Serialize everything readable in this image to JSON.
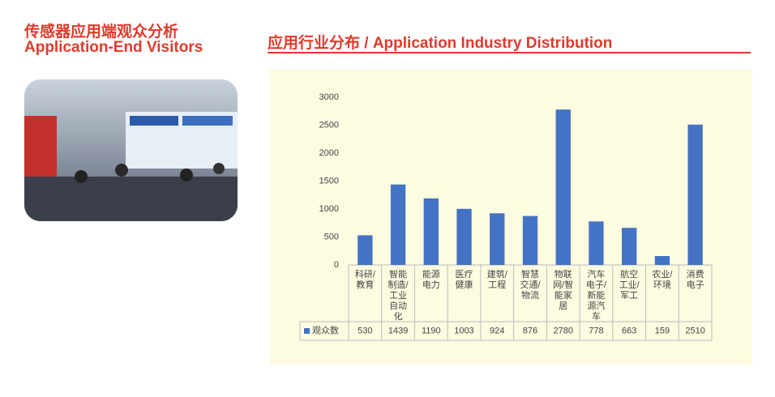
{
  "header": {
    "title_cn": "传感器应用端观众分析",
    "title_en": "Application-End Visitors"
  },
  "chart_data": {
    "type": "bar",
    "title": "应用行业分布 / Application Industry Distribution",
    "categories": [
      "科研/教育",
      "智能制造/工业自动化",
      "能源电力",
      "医疗健康",
      "建筑/工程",
      "智慧交通/物流",
      "物联网/智能家居",
      "汽车电子/新能源汽车",
      "航空工业/军工",
      "农业/环境",
      "消费电子"
    ],
    "series": [
      {
        "name": "观众数",
        "color": "#4472c4",
        "values": [
          530,
          1439,
          1190,
          1003,
          924,
          876,
          2780,
          778,
          663,
          159,
          2510
        ]
      }
    ],
    "ylim": [
      0,
      3000
    ],
    "yticks": [
      0,
      500,
      1000,
      1500,
      2000,
      2500,
      3000
    ],
    "grid": false
  }
}
